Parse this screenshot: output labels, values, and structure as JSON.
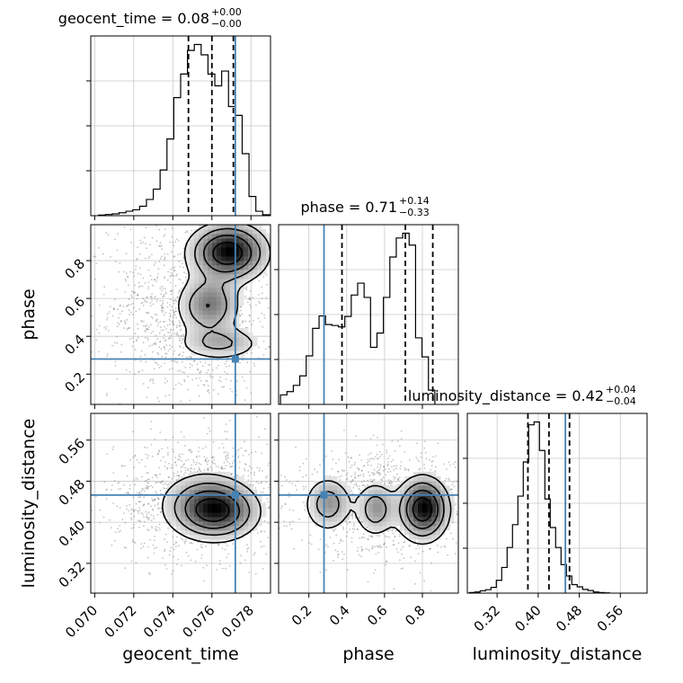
{
  "chart_data": {
    "type": "corner",
    "parameters": [
      "geocent_time",
      "phase",
      "luminosity_distance"
    ],
    "ranges": {
      "geocent_time": [
        0.0698,
        0.079
      ],
      "phase": [
        0.04,
        0.99
      ],
      "luminosity_distance": [
        0.262,
        0.612
      ]
    },
    "ticks": {
      "geocent_time": [
        "0.070",
        "0.072",
        "0.074",
        "0.076",
        "0.078"
      ],
      "phase": [
        "0.2",
        "0.4",
        "0.6",
        "0.8"
      ],
      "luminosity_distance": [
        "0.32",
        "0.40",
        "0.48",
        "0.56"
      ]
    },
    "truths": {
      "geocent_time": 0.0772,
      "phase": 0.28,
      "luminosity_distance": 0.453
    },
    "quantiles": {
      "geocent_time": [
        0.0748,
        0.076,
        0.0771
      ],
      "phase": [
        0.375,
        0.71,
        0.855
      ],
      "luminosity_distance": [
        0.38,
        0.421,
        0.461
      ]
    },
    "titles": {
      "geocent_time": {
        "main": "geocent_time = 0.08",
        "plus": "+0.00",
        "minus": "−0.00"
      },
      "phase": {
        "main": "phase = 0.71",
        "plus": "+0.14",
        "minus": "−0.33"
      },
      "luminosity_distance": {
        "main": "luminosity_distance = 0.42",
        "plus": "+0.04",
        "minus": "−0.04"
      }
    },
    "histograms": {
      "geocent_time": {
        "edges_start": 0.0702,
        "bin_width": 0.00035,
        "counts": [
          0.2,
          0.4,
          0.6,
          1.0,
          1.5,
          2.0,
          3.2,
          5.5,
          9.0,
          15.5,
          26.0,
          40.0,
          48.0,
          56.0,
          58.0,
          54.5,
          48.0,
          44.0,
          49.0,
          37.0,
          34.0,
          21.0,
          6.5,
          1.5,
          0.3
        ]
      },
      "phase": {
        "edges_start": 0.05,
        "bin_width": 0.034,
        "counts": [
          2.0,
          2.7,
          4.0,
          6.0,
          10.2,
          16.0,
          18.6,
          16.8,
          16.6,
          16.3,
          18.5,
          23.0,
          25.5,
          22.5,
          12.0,
          15.0,
          22.5,
          31.0,
          35.0,
          36.0,
          33.5,
          14.0,
          10.0,
          3.0
        ]
      },
      "luminosity_distance": {
        "edges_start": 0.266,
        "bin_width": 0.0105,
        "counts": [
          0.2,
          0.4,
          0.8,
          1.2,
          2.0,
          4.5,
          9.0,
          16.0,
          24.0,
          34.0,
          46.0,
          59.0,
          60.0,
          50.0,
          33.0,
          23.0,
          16.0,
          10.0,
          6.0,
          3.0,
          2.2,
          1.3,
          0.9,
          0.4,
          0.2,
          0.1
        ]
      }
    },
    "densities_2d": [
      {
        "x": "geocent_time",
        "y": "phase",
        "components": [
          {
            "cx": 0.0768,
            "cy": 0.84,
            "sx": 0.0011,
            "sy": 0.085,
            "w": 1.0
          },
          {
            "cx": 0.0758,
            "cy": 0.56,
            "sx": 0.0009,
            "sy": 0.09,
            "w": 0.55
          },
          {
            "cx": 0.0764,
            "cy": 0.36,
            "sx": 0.0012,
            "sy": 0.05,
            "w": 0.35
          }
        ],
        "scatter": {
          "cx": 0.075,
          "cy": 0.55,
          "sx": 0.0021,
          "sy": 0.24,
          "n": 1300
        }
      },
      {
        "x": "geocent_time",
        "y": "luminosity_distance",
        "components": [
          {
            "cx": 0.0762,
            "cy": 0.418,
            "sx": 0.0012,
            "sy": 0.03,
            "w": 1.0
          },
          {
            "cx": 0.0756,
            "cy": 0.44,
            "sx": 0.0013,
            "sy": 0.035,
            "w": 0.5
          }
        ],
        "scatter": {
          "cx": 0.0754,
          "cy": 0.445,
          "sx": 0.0022,
          "sy": 0.055,
          "n": 1300
        }
      },
      {
        "x": "phase",
        "y": "luminosity_distance",
        "components": [
          {
            "cx": 0.8,
            "cy": 0.425,
            "sx": 0.075,
            "sy": 0.034,
            "w": 1.0
          },
          {
            "cx": 0.55,
            "cy": 0.425,
            "sx": 0.06,
            "sy": 0.03,
            "w": 0.45
          },
          {
            "cx": 0.3,
            "cy": 0.435,
            "sx": 0.07,
            "sy": 0.03,
            "w": 0.45
          }
        ],
        "scatter": {
          "cx": 0.6,
          "cy": 0.435,
          "sx": 0.24,
          "sy": 0.048,
          "n": 1300
        }
      }
    ],
    "labels": {
      "x": [
        "geocent_time",
        "phase",
        "luminosity_distance"
      ],
      "y": [
        "phase",
        "luminosity_distance"
      ]
    },
    "colors": {
      "truth": "#4682b4",
      "contour": "#000000",
      "grid": "#c8c8c8"
    },
    "grid": true
  }
}
